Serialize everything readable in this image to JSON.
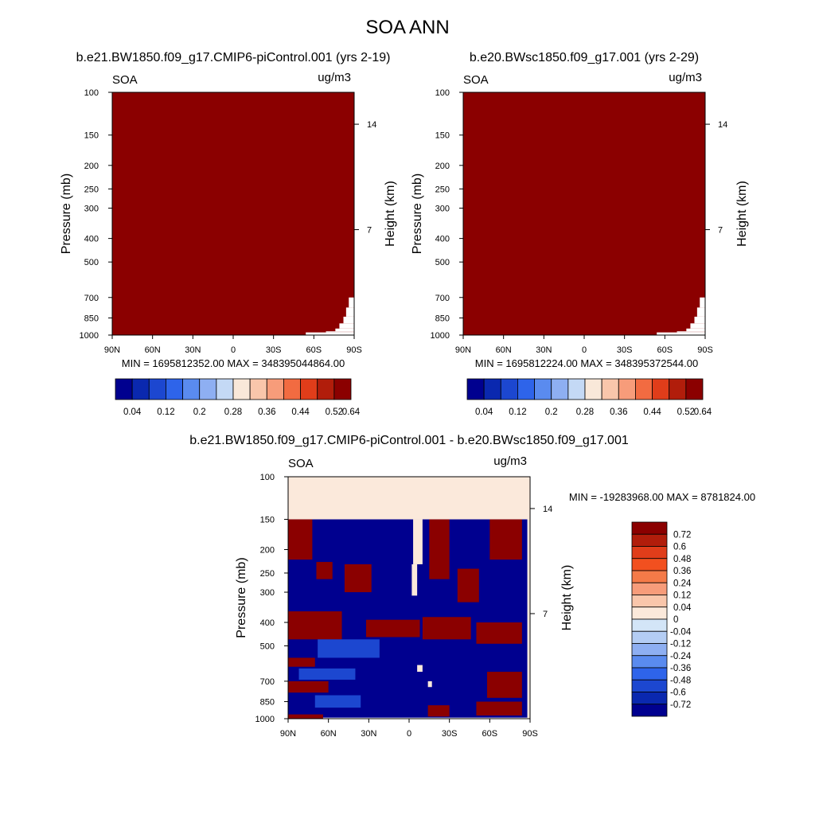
{
  "figure": {
    "title": "SOA ANN"
  },
  "chart_data": [
    {
      "type": "heatmap",
      "id": "left",
      "title": "b.e21.BW1850.f09_g17.CMIP6-piControl.001 (yrs 2-19)",
      "var_label": "SOA",
      "units_label": "ug/m3",
      "ylabel": "Pressure (mb)",
      "ylabel_right": "Height (km)",
      "pressure_ticks": [
        "100",
        "150",
        "200",
        "250",
        "300",
        "400",
        "500",
        "700",
        "850",
        "1000"
      ],
      "pressure_values": [
        100,
        150,
        200,
        250,
        300,
        400,
        500,
        700,
        850,
        1000
      ],
      "ylim": [
        100,
        1000
      ],
      "height_ticks": [
        "14",
        "7"
      ],
      "height_values": [
        14,
        7
      ],
      "lat_ticks": [
        "90N",
        "60N",
        "30N",
        "0",
        "30S",
        "60S",
        "90S"
      ],
      "lat_values": [
        90,
        60,
        30,
        0,
        -30,
        -60,
        -90
      ],
      "min_label": "MIN = 1695812352.00",
      "max_label": "MAX = 348395044864.00",
      "fill_color": "#8b0000",
      "surface_mask": [
        [
          -54,
          1000,
          975
        ],
        [
          -69,
          975,
          965
        ],
        [
          -76,
          965,
          940
        ],
        [
          -79,
          940,
          895
        ],
        [
          -82,
          895,
          840
        ],
        [
          -84,
          840,
          770
        ],
        [
          -86,
          770,
          700
        ],
        [
          -90,
          700,
          670
        ]
      ],
      "colorbar": {
        "orientation": "horizontal",
        "colors": [
          "#00008f",
          "#0a28af",
          "#1c47d0",
          "#2e64ea",
          "#5a8bef",
          "#8eaff2",
          "#c4d9f5",
          "#f9e8d9",
          "#f9c6ab",
          "#f79c7a",
          "#f26b41",
          "#e03d1a",
          "#b11d0b",
          "#8b0000"
        ],
        "labels": [
          "0.04",
          "0.12",
          "0.2",
          "0.28",
          "0.36",
          "0.44",
          "0.52",
          "0.64"
        ]
      }
    },
    {
      "type": "heatmap",
      "id": "right",
      "title": "b.e20.BWsc1850.f09_g17.001 (yrs 2-29)",
      "var_label": "SOA",
      "units_label": "ug/m3",
      "ylabel": "Pressure (mb)",
      "ylabel_right": "Height (km)",
      "pressure_ticks": [
        "100",
        "150",
        "200",
        "250",
        "300",
        "400",
        "500",
        "700",
        "850",
        "1000"
      ],
      "pressure_values": [
        100,
        150,
        200,
        250,
        300,
        400,
        500,
        700,
        850,
        1000
      ],
      "ylim": [
        100,
        1000
      ],
      "height_ticks": [
        "14",
        "7"
      ],
      "height_values": [
        14,
        7
      ],
      "lat_ticks": [
        "90N",
        "60N",
        "30N",
        "0",
        "30S",
        "60S",
        "90S"
      ],
      "lat_values": [
        90,
        60,
        30,
        0,
        -30,
        -60,
        -90
      ],
      "min_label": "MIN = 1695812224.00",
      "max_label": "MAX = 348395372544.00",
      "fill_color": "#8b0000",
      "surface_mask": [
        [
          -54,
          1000,
          975
        ],
        [
          -69,
          975,
          965
        ],
        [
          -76,
          965,
          940
        ],
        [
          -79,
          940,
          895
        ],
        [
          -82,
          895,
          840
        ],
        [
          -84,
          840,
          770
        ],
        [
          -86,
          770,
          700
        ],
        [
          -90,
          700,
          670
        ]
      ],
      "colorbar": {
        "orientation": "horizontal",
        "colors": [
          "#00008f",
          "#0a28af",
          "#1c47d0",
          "#2e64ea",
          "#5a8bef",
          "#8eaff2",
          "#c4d9f5",
          "#f9e8d9",
          "#f9c6ab",
          "#f79c7a",
          "#f26b41",
          "#e03d1a",
          "#b11d0b",
          "#8b0000"
        ],
        "labels": [
          "0.04",
          "0.12",
          "0.2",
          "0.28",
          "0.36",
          "0.44",
          "0.52",
          "0.64"
        ]
      }
    },
    {
      "type": "heatmap",
      "id": "diff",
      "title": "b.e21.BW1850.f09_g17.CMIP6-piControl.001 - b.e20.BWsc1850.f09_g17.001",
      "var_label": "SOA",
      "units_label": "ug/m3",
      "ylabel": "Pressure (mb)",
      "ylabel_right": "Height (km)",
      "pressure_ticks": [
        "100",
        "150",
        "200",
        "250",
        "300",
        "400",
        "500",
        "700",
        "850",
        "1000"
      ],
      "pressure_values": [
        100,
        150,
        200,
        250,
        300,
        400,
        500,
        700,
        850,
        1000
      ],
      "ylim": [
        100,
        1000
      ],
      "height_ticks": [
        "14",
        "7"
      ],
      "height_values": [
        14,
        7
      ],
      "lat_ticks": [
        "90N",
        "60N",
        "30N",
        "0",
        "30S",
        "60S",
        "90S"
      ],
      "lat_values": [
        90,
        60,
        30,
        0,
        -30,
        -60,
        -90
      ],
      "min_label": "MIN = -19283968.00",
      "max_label": "MAX = 8781824.00",
      "colors_used": {
        "positive": "#8b0000",
        "negative": "#00008f",
        "neg_mid": "#1c47d0",
        "near_zero": "#fbe9db"
      },
      "regions": [
        {
          "color": "near_zero",
          "lat": [
            90,
            -90
          ],
          "p": [
            100,
            150
          ]
        },
        {
          "color": "negative",
          "lat": [
            90,
            -88
          ],
          "p": [
            150,
            990
          ]
        },
        {
          "color": "positive",
          "lat": [
            90,
            72
          ],
          "p": [
            150,
            220
          ]
        },
        {
          "color": "positive",
          "lat": [
            69,
            57
          ],
          "p": [
            225,
            265
          ]
        },
        {
          "color": "positive",
          "lat": [
            48,
            28
          ],
          "p": [
            230,
            300
          ]
        },
        {
          "color": "positive",
          "lat": [
            -15,
            -30
          ],
          "p": [
            150,
            265
          ]
        },
        {
          "color": "positive",
          "lat": [
            -60,
            -84
          ],
          "p": [
            150,
            220
          ]
        },
        {
          "color": "positive",
          "lat": [
            -36,
            -52
          ],
          "p": [
            240,
            330
          ]
        },
        {
          "color": "positive",
          "lat": [
            90,
            50
          ],
          "p": [
            360,
            470
          ]
        },
        {
          "color": "positive",
          "lat": [
            32,
            -8
          ],
          "p": [
            390,
            460
          ]
        },
        {
          "color": "positive",
          "lat": [
            -10,
            -46
          ],
          "p": [
            380,
            470
          ]
        },
        {
          "color": "positive",
          "lat": [
            -50,
            -84
          ],
          "p": [
            400,
            490
          ]
        },
        {
          "color": "positive",
          "lat": [
            90,
            70
          ],
          "p": [
            560,
            610
          ]
        },
        {
          "color": "positive",
          "lat": [
            90,
            60
          ],
          "p": [
            700,
            780
          ]
        },
        {
          "color": "positive",
          "lat": [
            -58,
            -84
          ],
          "p": [
            640,
            820
          ]
        },
        {
          "color": "positive",
          "lat": [
            -50,
            -84
          ],
          "p": [
            850,
            970
          ]
        },
        {
          "color": "positive",
          "lat": [
            90,
            64
          ],
          "p": [
            960,
            1000
          ]
        },
        {
          "color": "positive",
          "lat": [
            -14,
            -30
          ],
          "p": [
            880,
            980
          ]
        },
        {
          "color": "neg_mid",
          "lat": [
            68,
            22
          ],
          "p": [
            470,
            560
          ]
        },
        {
          "color": "neg_mid",
          "lat": [
            82,
            40
          ],
          "p": [
            620,
            690
          ]
        },
        {
          "color": "neg_mid",
          "lat": [
            70,
            36
          ],
          "p": [
            800,
            900
          ]
        },
        {
          "color": "near_zero",
          "lat": [
            -3,
            -10
          ],
          "p": [
            150,
            230
          ]
        },
        {
          "color": "near_zero",
          "lat": [
            -2,
            -6
          ],
          "p": [
            230,
            310
          ]
        },
        {
          "color": "near_zero",
          "lat": [
            -6,
            -10
          ],
          "p": [
            600,
            640
          ]
        },
        {
          "color": "near_zero",
          "lat": [
            -14,
            -17
          ],
          "p": [
            700,
            740
          ]
        },
        {
          "color": "near_zero",
          "lat": [
            -88,
            -90
          ],
          "p": [
            150,
            1000
          ]
        }
      ],
      "colorbar": {
        "orientation": "vertical",
        "colors": [
          "#8b0000",
          "#b11d0b",
          "#e03d1a",
          "#f2501f",
          "#f47a48",
          "#f79c7a",
          "#f9c6ab",
          "#fbe9db",
          "#d3e5f7",
          "#b4cdf4",
          "#8eaff2",
          "#5a8bef",
          "#2e64ea",
          "#1c47d0",
          "#0a28af",
          "#00008f"
        ],
        "labels": [
          "0.72",
          "0.6",
          "0.48",
          "0.36",
          "0.24",
          "0.12",
          "0.04",
          "0",
          "-0.04",
          "-0.12",
          "-0.24",
          "-0.36",
          "-0.48",
          "-0.6",
          "-0.72"
        ]
      }
    }
  ]
}
